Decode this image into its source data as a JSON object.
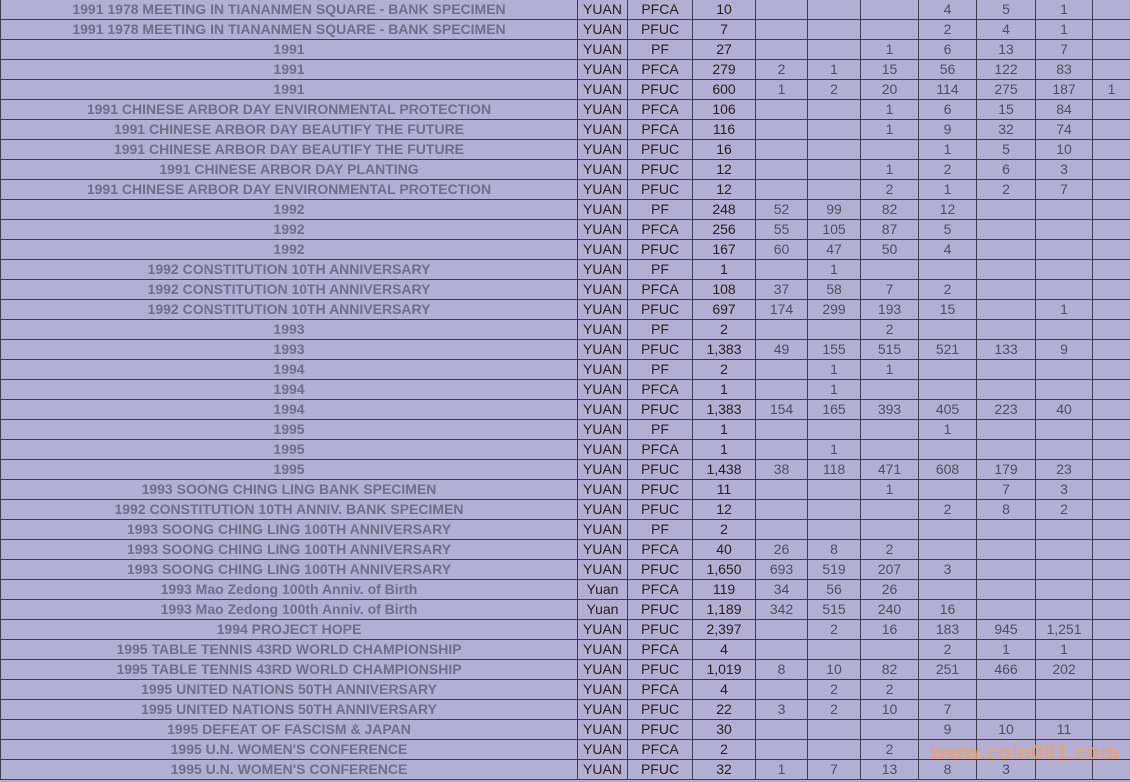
{
  "rows": [
    [
      "1991 1978 MEETING IN TIANANMEN SQUARE - BANK SPECIMEN",
      "YUAN",
      "PFCA",
      "10",
      "",
      "",
      "",
      "4",
      "5",
      "1",
      ""
    ],
    [
      "1991 1978 MEETING IN TIANANMEN SQUARE - BANK SPECIMEN",
      "YUAN",
      "PFUC",
      "7",
      "",
      "",
      "",
      "2",
      "4",
      "1",
      ""
    ],
    [
      "1991",
      "YUAN",
      "PF",
      "27",
      "",
      "",
      "1",
      "6",
      "13",
      "7",
      ""
    ],
    [
      "1991",
      "YUAN",
      "PFCA",
      "279",
      "2",
      "1",
      "15",
      "56",
      "122",
      "83",
      ""
    ],
    [
      "1991",
      "YUAN",
      "PFUC",
      "600",
      "1",
      "2",
      "20",
      "114",
      "275",
      "187",
      "1"
    ],
    [
      "1991 CHINESE ARBOR DAY ENVIRONMENTAL PROTECTION",
      "YUAN",
      "PFCA",
      "106",
      "",
      "",
      "1",
      "6",
      "15",
      "84",
      ""
    ],
    [
      "1991 CHINESE ARBOR DAY BEAUTIFY THE FUTURE",
      "YUAN",
      "PFCA",
      "116",
      "",
      "",
      "1",
      "9",
      "32",
      "74",
      ""
    ],
    [
      "1991 CHINESE ARBOR DAY BEAUTIFY THE FUTURE",
      "YUAN",
      "PFUC",
      "16",
      "",
      "",
      "",
      "1",
      "5",
      "10",
      ""
    ],
    [
      "1991 CHINESE ARBOR DAY PLANTING",
      "YUAN",
      "PFUC",
      "12",
      "",
      "",
      "1",
      "2",
      "6",
      "3",
      ""
    ],
    [
      "1991 CHINESE ARBOR DAY ENVIRONMENTAL PROTECTION",
      "YUAN",
      "PFUC",
      "12",
      "",
      "",
      "2",
      "1",
      "2",
      "7",
      ""
    ],
    [
      "1992",
      "YUAN",
      "PF",
      "248",
      "52",
      "99",
      "82",
      "12",
      "",
      "",
      ""
    ],
    [
      "1992",
      "YUAN",
      "PFCA",
      "256",
      "55",
      "105",
      "87",
      "5",
      "",
      "",
      ""
    ],
    [
      "1992",
      "YUAN",
      "PFUC",
      "167",
      "60",
      "47",
      "50",
      "4",
      "",
      "",
      ""
    ],
    [
      "1992 CONSTITUTION 10TH ANNIVERSARY",
      "YUAN",
      "PF",
      "1",
      "",
      "1",
      "",
      "",
      "",
      "",
      ""
    ],
    [
      "1992 CONSTITUTION 10TH ANNIVERSARY",
      "YUAN",
      "PFCA",
      "108",
      "37",
      "58",
      "7",
      "2",
      "",
      "",
      ""
    ],
    [
      "1992 CONSTITUTION 10TH ANNIVERSARY",
      "YUAN",
      "PFUC",
      "697",
      "174",
      "299",
      "193",
      "15",
      "",
      "1",
      ""
    ],
    [
      "1993",
      "YUAN",
      "PF",
      "2",
      "",
      "",
      "2",
      "",
      "",
      "",
      ""
    ],
    [
      "1993",
      "YUAN",
      "PFUC",
      "1,383",
      "49",
      "155",
      "515",
      "521",
      "133",
      "9",
      ""
    ],
    [
      "1994",
      "YUAN",
      "PF",
      "2",
      "",
      "1",
      "1",
      "",
      "",
      "",
      ""
    ],
    [
      "1994",
      "YUAN",
      "PFCA",
      "1",
      "",
      "1",
      "",
      "",
      "",
      "",
      ""
    ],
    [
      "1994",
      "YUAN",
      "PFUC",
      "1,383",
      "154",
      "165",
      "393",
      "405",
      "223",
      "40",
      ""
    ],
    [
      "1995",
      "YUAN",
      "PF",
      "1",
      "",
      "",
      "",
      "1",
      "",
      "",
      ""
    ],
    [
      "1995",
      "YUAN",
      "PFCA",
      "1",
      "",
      "1",
      "",
      "",
      "",
      "",
      ""
    ],
    [
      "1995",
      "YUAN",
      "PFUC",
      "1,438",
      "38",
      "118",
      "471",
      "608",
      "179",
      "23",
      ""
    ],
    [
      "1993 SOONG CHING LING BANK SPECIMEN",
      "YUAN",
      "PFUC",
      "11",
      "",
      "",
      "1",
      "",
      "7",
      "3",
      ""
    ],
    [
      "1992 CONSTITUTION 10TH ANNIV. BANK SPECIMEN",
      "YUAN",
      "PFUC",
      "12",
      "",
      "",
      "",
      "2",
      "8",
      "2",
      ""
    ],
    [
      "1993 SOONG CHING LING 100TH ANNIVERSARY",
      "YUAN",
      "PF",
      "2",
      "",
      "",
      "",
      "",
      "",
      "",
      ""
    ],
    [
      "1993 SOONG CHING LING 100TH ANNIVERSARY",
      "YUAN",
      "PFCA",
      "40",
      "26",
      "8",
      "2",
      "",
      "",
      "",
      ""
    ],
    [
      "1993 SOONG CHING LING 100TH ANNIVERSARY",
      "YUAN",
      "PFUC",
      "1,650",
      "693",
      "519",
      "207",
      "3",
      "",
      "",
      ""
    ],
    [
      "1993 Mao Zedong 100th Anniv. of Birth",
      "Yuan",
      "PFCA",
      "119",
      "34",
      "56",
      "26",
      "",
      "",
      "",
      ""
    ],
    [
      "1993 Mao Zedong 100th Anniv. of Birth",
      "Yuan",
      "PFUC",
      "1,189",
      "342",
      "515",
      "240",
      "16",
      "",
      "",
      ""
    ],
    [
      "1994 PROJECT HOPE",
      "YUAN",
      "PFUC",
      "2,397",
      "",
      "2",
      "16",
      "183",
      "945",
      "1,251",
      ""
    ],
    [
      "1995 TABLE TENNIS 43RD WORLD CHAMPIONSHIP",
      "YUAN",
      "PFCA",
      "4",
      "",
      "",
      "",
      "2",
      "1",
      "1",
      ""
    ],
    [
      "1995 TABLE TENNIS 43RD WORLD CHAMPIONSHIP",
      "YUAN",
      "PFUC",
      "1,019",
      "8",
      "10",
      "82",
      "251",
      "466",
      "202",
      ""
    ],
    [
      "1995 UNITED NATIONS 50TH ANNIVERSARY",
      "YUAN",
      "PFCA",
      "4",
      "",
      "2",
      "2",
      "",
      "",
      "",
      ""
    ],
    [
      "1995 UNITED NATIONS 50TH ANNIVERSARY",
      "YUAN",
      "PFUC",
      "22",
      "3",
      "2",
      "10",
      "7",
      "",
      "",
      ""
    ],
    [
      "1995 DEFEAT OF FASCISM & JAPAN",
      "YUAN",
      "PFUC",
      "30",
      "",
      "",
      "",
      "9",
      "10",
      "11",
      ""
    ],
    [
      "1995 U.N. WOMEN'S CONFERENCE",
      "YUAN",
      "PFCA",
      "2",
      "",
      "",
      "2",
      "",
      "",
      "",
      ""
    ],
    [
      "1995 U.N. WOMEN'S CONFERENCE",
      "YUAN",
      "PFUC",
      "32",
      "1",
      "7",
      "13",
      "8",
      "3",
      "",
      ""
    ]
  ],
  "watermark": "www.coin001.com",
  "colors": {
    "background": "#b3afd3",
    "grid": "#3c3c4e",
    "name_text": "#6d6f88",
    "watermark": "#f0a060"
  }
}
